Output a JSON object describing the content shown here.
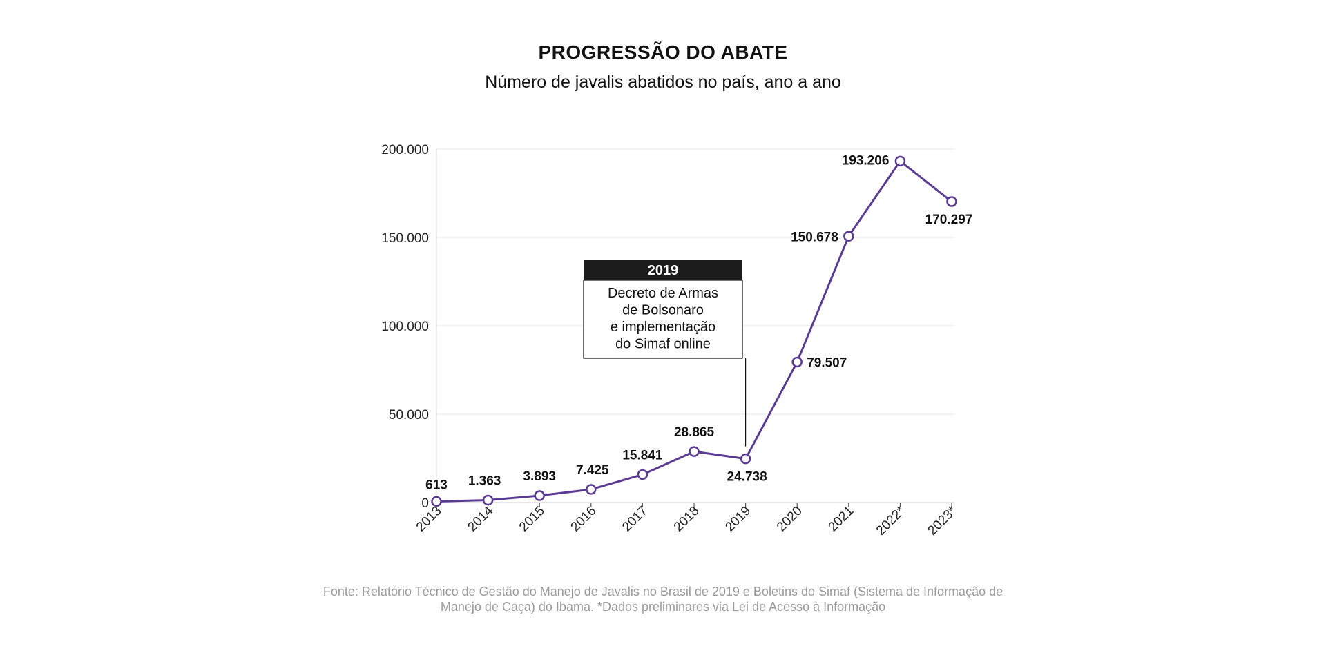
{
  "chart_data": {
    "type": "line",
    "title": "PROGRESSÃO DO ABATE",
    "subtitle": "Número de javalis abatidos no país, ano a ano",
    "categories": [
      "2013",
      "2014",
      "2015",
      "2016",
      "2017",
      "2018",
      "2019",
      "2020",
      "2021",
      "2022*",
      "2023*"
    ],
    "series": [
      {
        "values": [
          613,
          1363,
          3893,
          7425,
          15841,
          28865,
          24738,
          79507,
          150678,
          193206,
          170297
        ],
        "labels": [
          "613",
          "1.363",
          "3.893",
          "7.425",
          "15.841",
          "28.865",
          "24.738",
          "79.507",
          "150.678",
          "193.206",
          "170.297"
        ]
      }
    ],
    "ylim": [
      0,
      200000
    ],
    "yticks": [
      0,
      50000,
      100000,
      150000,
      200000
    ],
    "ytick_labels": [
      "0",
      "50.000",
      "100.000",
      "150.000",
      "200.000"
    ],
    "grid": true,
    "line_color": "#5b3a94",
    "annotation": {
      "category": "2019",
      "title": "2019",
      "lines": [
        "Decreto de Armas",
        "de Bolsonaro",
        "e implementação",
        "do Simaf online"
      ]
    },
    "source": "Fonte: Relatório Técnico de Gestão do Manejo de Javalis no Brasil de 2019 e Boletins do Simaf (Sistema de Informação de Manejo de Caça) do Ibama. *Dados preliminares via Lei de Acesso à Informação"
  }
}
